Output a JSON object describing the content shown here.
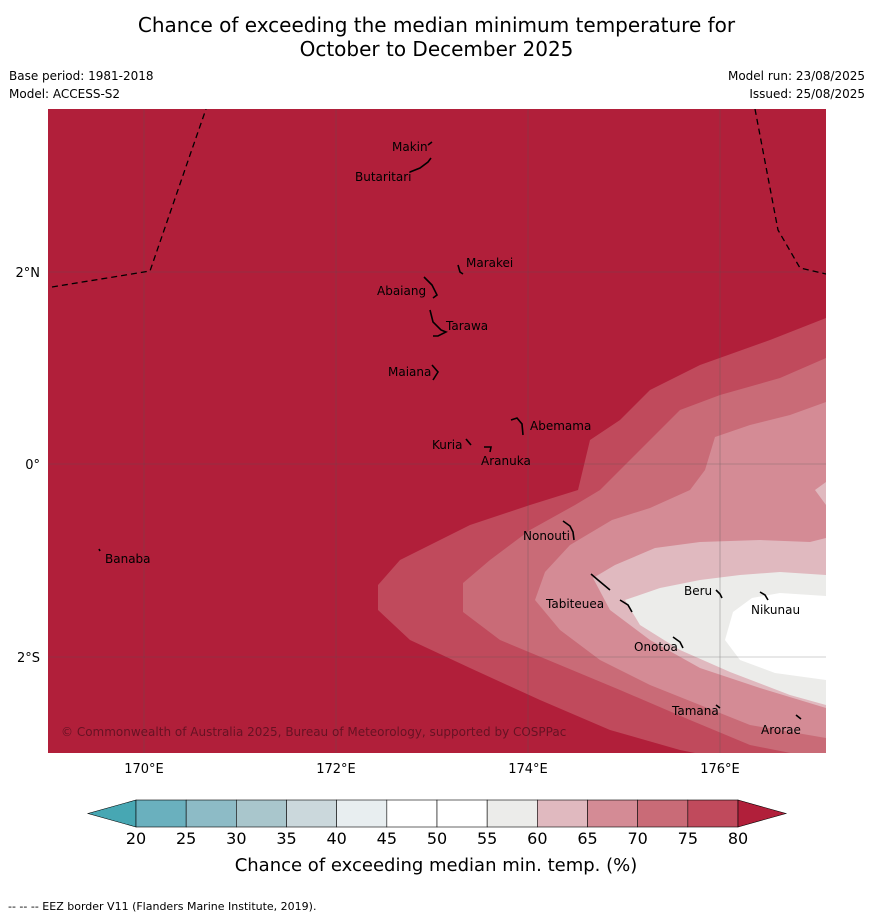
{
  "header": {
    "title_line1": "Chance of exceeding the median minimum temperature for",
    "title_line2": "October to December 2025",
    "base_period": "Base period: 1981-2018",
    "model": "Model: ACCESS-S2",
    "model_run": "Model run: 23/08/2025",
    "issued": "Issued: 25/08/2025"
  },
  "map": {
    "lon_ticks": [
      "170°E",
      "172°E",
      "174°E",
      "176°E"
    ],
    "lat_ticks": [
      "2°N",
      "0°",
      "2°S"
    ],
    "copyright": "© Commonwealth of Australia 2025, Bureau of Meteorology, supported by COSPPac",
    "islands": [
      "Makin",
      "Butaritari",
      "Marakei",
      "Abaiang",
      "Tarawa",
      "Maiana",
      "Abemama",
      "Kuria",
      "Aranuka",
      "Nonouti",
      "Banaba",
      "Beru",
      "Nikunau",
      "Tabiteuea",
      "Onotoa",
      "Tamana",
      "Arorae"
    ],
    "background_color": "#b11f3a"
  },
  "colorbar": {
    "ticks": [
      "20",
      "25",
      "30",
      "35",
      "40",
      "45",
      "50",
      "55",
      "60",
      "65",
      "70",
      "75",
      "80"
    ],
    "colors": [
      "#6ab0be",
      "#8dbbc6",
      "#a9c6cc",
      "#cbd8dc",
      "#e8eef0",
      "#ffffff",
      "#ffffff",
      "#ececea",
      "#e0b9bf",
      "#d48b95",
      "#c96b77",
      "#c04a5c"
    ],
    "under_color": "#47a7b3",
    "over_color": "#b11f3a",
    "label": "Chance of exceeding median min. temp. (%)"
  },
  "footnote": "--  --  -- EEZ border V11 (Flanders Marine Institute, 2019)."
}
